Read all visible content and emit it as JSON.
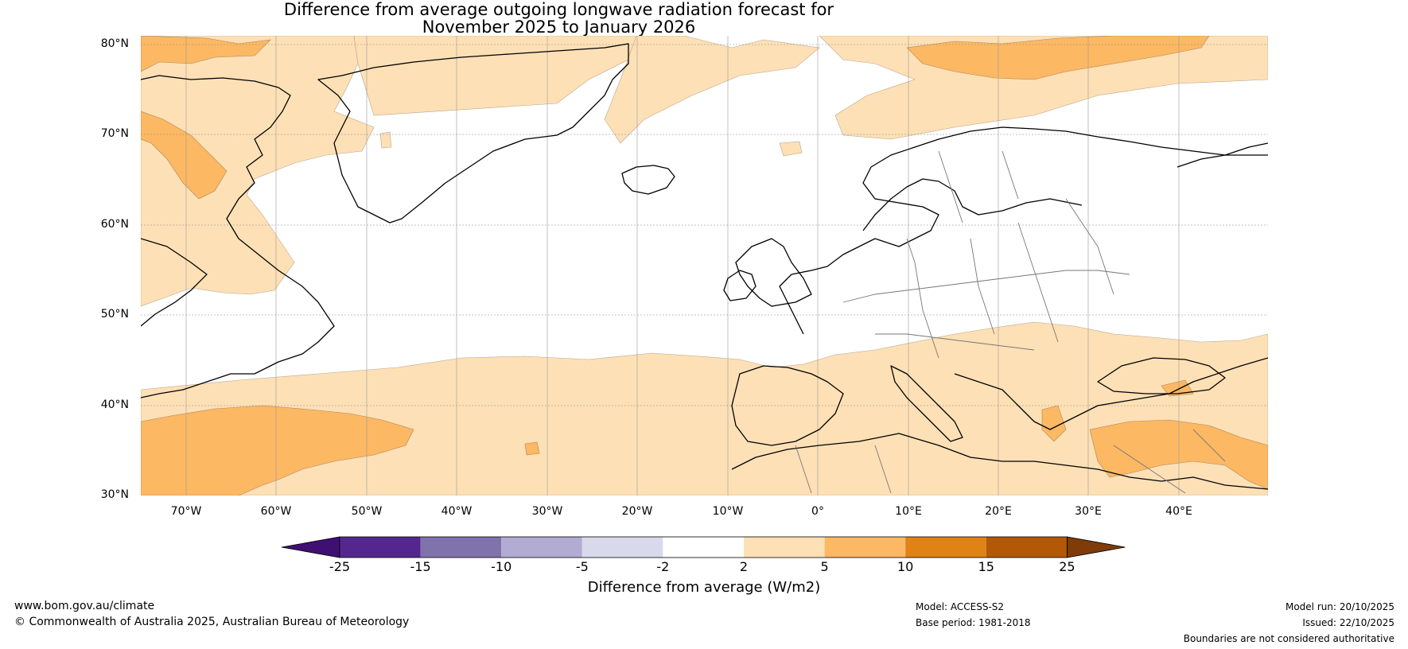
{
  "title_line1": "Difference from average outgoing longwave radiation forecast for",
  "title_line2": "November 2025 to January 2026",
  "lat_labels": [
    "80°N",
    "70°N",
    "60°N",
    "50°N",
    "40°N",
    "30°N"
  ],
  "lon_labels": [
    "70°W",
    "60°W",
    "50°W",
    "40°W",
    "30°W",
    "20°W",
    "10°W",
    "0°",
    "10°E",
    "20°E",
    "30°E",
    "40°E"
  ],
  "colorbar": {
    "ticks": [
      "-25",
      "-15",
      "-10",
      "-5",
      "-2",
      "2",
      "5",
      "10",
      "15",
      "25"
    ],
    "colors": [
      "#3f0f72",
      "#54278f",
      "#8073ac",
      "#b2abd2",
      "#d8daeb",
      "#ffffff",
      "#fee0b6",
      "#fdb863",
      "#e08214",
      "#b35806",
      "#7f3b08"
    ],
    "label": "Difference from average (W/m2)"
  },
  "footer": {
    "website": "www.bom.gov.au/climate",
    "copyright": "© Commonwealth of Australia 2025, Australian Bureau of Meteorology",
    "model": "Model: ACCESS-S2",
    "base_period": "Base period: 1981-2018",
    "model_run": "Model run: 20/10/2025",
    "issued": "Issued: 22/10/2025",
    "disclaimer": "Boundaries are not considered authoritative"
  }
}
